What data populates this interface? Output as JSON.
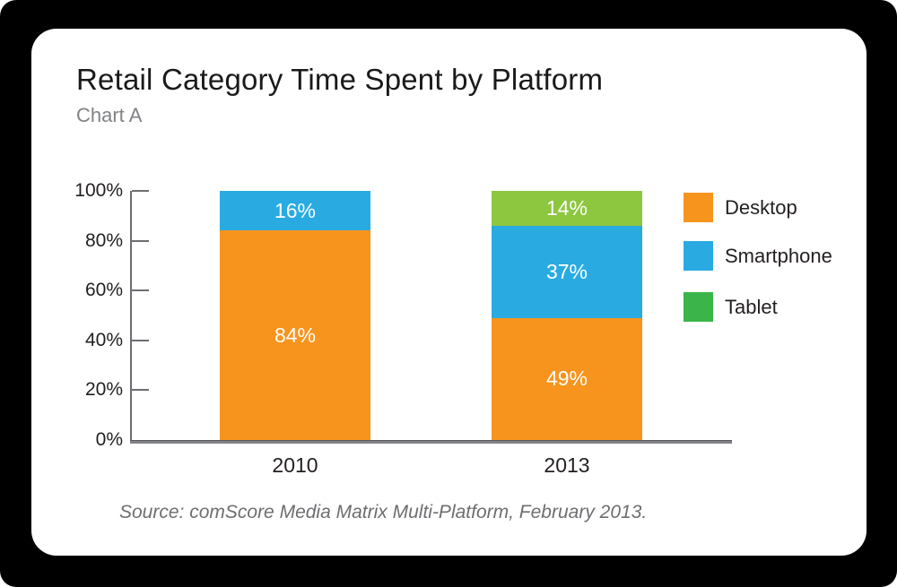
{
  "page": {
    "frame_color": "#000000",
    "card_color": "#ffffff"
  },
  "header": {
    "title": "Retail Category Time Spent by Platform",
    "subtitle": "Chart A"
  },
  "footer": {
    "source": "Source: comScore Media Matrix Multi-Platform, February 2013."
  },
  "chart_data": {
    "type": "bar",
    "variant": "stacked",
    "title": "Retail Category Time Spent by Platform",
    "categories": [
      "2010",
      "2013"
    ],
    "series": [
      {
        "name": "Desktop",
        "color": "#F7941E",
        "values": [
          84,
          49
        ]
      },
      {
        "name": "Smartphone",
        "color": "#29ABE2",
        "values": [
          16,
          37
        ]
      },
      {
        "name": "Tablet",
        "color": "#8DC63F",
        "legend_color": "#39B54A",
        "values": [
          0,
          14
        ]
      }
    ],
    "value_suffix": "%",
    "y_axis": {
      "min": 0,
      "max": 100,
      "ticks": [
        "100%",
        "80%",
        "60%",
        "40%",
        "20%",
        "0%"
      ]
    },
    "legend": {
      "position": "right",
      "entries": [
        "Desktop",
        "Smartphone",
        "Tablet"
      ]
    },
    "grid": false
  }
}
